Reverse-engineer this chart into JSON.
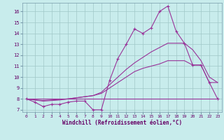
{
  "xlabel": "Windchill (Refroidissement éolien,°C)",
  "background_color": "#c8ecec",
  "grid_color": "#a0c8c8",
  "line_color": "#993399",
  "xlim": [
    -0.5,
    23.5
  ],
  "ylim": [
    6.8,
    16.8
  ],
  "xticks": [
    0,
    1,
    2,
    3,
    4,
    5,
    6,
    7,
    8,
    9,
    10,
    11,
    12,
    13,
    14,
    15,
    16,
    17,
    18,
    19,
    20,
    21,
    22,
    23
  ],
  "yticks": [
    7,
    8,
    9,
    10,
    11,
    12,
    13,
    14,
    15,
    16
  ],
  "line1_x": [
    0,
    1,
    2,
    3,
    4,
    5,
    6,
    7,
    8,
    9,
    10,
    11,
    12,
    13,
    14,
    15,
    16,
    17,
    18,
    19,
    20,
    21,
    22,
    23
  ],
  "line1_y": [
    8.0,
    7.7,
    7.3,
    7.5,
    7.5,
    7.7,
    7.8,
    7.8,
    7.0,
    7.0,
    9.7,
    11.7,
    13.0,
    14.4,
    14.0,
    14.5,
    16.0,
    16.5,
    14.2,
    13.1,
    11.1,
    11.1,
    9.5,
    8.0
  ],
  "line2_x": [
    0,
    9,
    23
  ],
  "line2_y": [
    8.0,
    8.0,
    8.0
  ],
  "line3_x": [
    0,
    1,
    2,
    3,
    4,
    5,
    6,
    7,
    8,
    9,
    10,
    11,
    12,
    13,
    14,
    15,
    16,
    17,
    18,
    19,
    20,
    21,
    22,
    23
  ],
  "line3_y": [
    8.0,
    7.9,
    7.85,
    7.9,
    7.95,
    8.0,
    8.1,
    8.2,
    8.3,
    8.5,
    9.0,
    9.5,
    10.0,
    10.5,
    10.8,
    11.0,
    11.2,
    11.5,
    11.5,
    11.5,
    11.1,
    11.1,
    9.5,
    9.5
  ],
  "line4_x": [
    0,
    1,
    2,
    3,
    4,
    5,
    6,
    7,
    8,
    9,
    10,
    11,
    12,
    13,
    14,
    15,
    16,
    17,
    18,
    19,
    20,
    21,
    22,
    23
  ],
  "line4_y": [
    8.0,
    7.9,
    7.8,
    7.85,
    7.9,
    8.0,
    8.1,
    8.2,
    8.3,
    8.6,
    9.3,
    10.0,
    10.7,
    11.3,
    11.8,
    12.3,
    12.7,
    13.1,
    13.1,
    13.1,
    12.5,
    11.5,
    10.0,
    9.5
  ]
}
